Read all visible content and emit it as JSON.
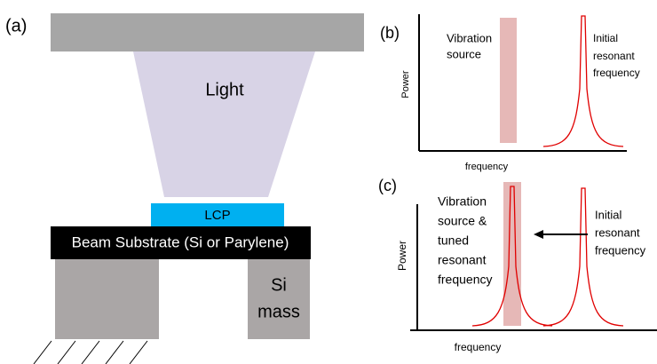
{
  "panel_a": {
    "label": "(a)",
    "light": "Light",
    "lcp": "LCP",
    "beam": "Beam Substrate (Si or Parylene)",
    "mass": [
      "Si",
      "mass"
    ]
  },
  "panel_b": {
    "label": "(b)",
    "source_label": [
      "Vibration",
      "source"
    ],
    "resonance_label": [
      "Initial",
      "resonant",
      "frequency"
    ],
    "y_axis": "Power",
    "x_axis": "frequency"
  },
  "panel_c": {
    "label": "(c)",
    "source_label": [
      "Vibration",
      "source &",
      "tuned",
      "resonant",
      "frequency"
    ],
    "resonance_label": [
      "Initial",
      "resonant",
      "frequency"
    ],
    "y_axis": "Power",
    "x_axis": "frequency"
  }
}
